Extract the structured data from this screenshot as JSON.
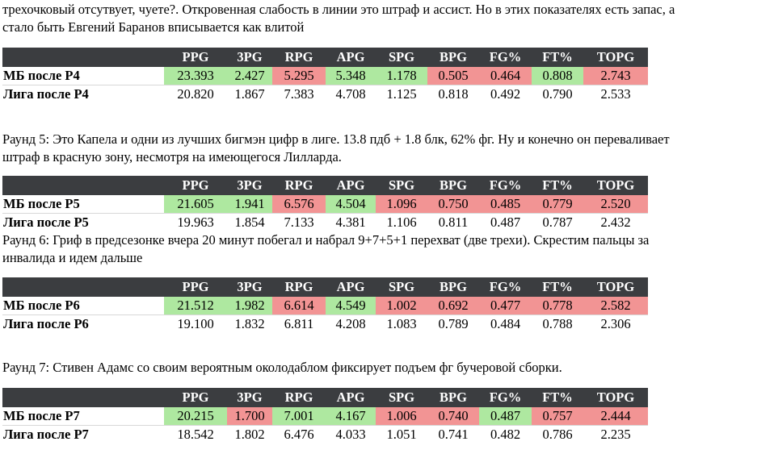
{
  "headers": [
    "PPG",
    "3PG",
    "RPG",
    "APG",
    "SPG",
    "BPG",
    "FG%",
    "FT%",
    "TOPG"
  ],
  "colors": {
    "header_bg": "#3b3d40",
    "good": "#aee8a0",
    "bad": "#f29494"
  },
  "paragraphs": {
    "p0_line1": "трехочковый отсутвует, чуете?. Откровенная слабость в линии это штраф и ассист. Но в этих показателях есть запас, а",
    "p0_line2": "стало быть Евгений Баранов вписывается как влитой",
    "p5_line1": "Раунд 5: Это Капела и одни из лучших бигмэн цифр в лиге. 13.8 пдб + 1.8 блк, 62% фг. Ну и конечно он переваливает",
    "p5_line2": "штраф в красную зону, несмотря на имеющегося Лилларда.",
    "p6_line1": "Раунд 6: Гриф в предсезонке вчера 20 минут побегал и набрал 9+7+5+1 перехват (две трехи). Скрестим пальцы за",
    "p6_line2": "инвалида и идем дальше",
    "p7_line1": "Раунд 7: Стивен Адамс со своим вероятным околодаблом фиксирует подъем фг бучеровой сборки."
  },
  "tables": {
    "t4": {
      "mb_label": "МБ после Р4",
      "mb": [
        "23.393",
        "2.427",
        "5.295",
        "5.348",
        "1.178",
        "0.505",
        "0.464",
        "0.808",
        "2.743"
      ],
      "mb_status": [
        "good",
        "good",
        "bad",
        "good",
        "good",
        "bad",
        "bad",
        "good",
        "bad"
      ],
      "league_label": "Лига после Р4",
      "league": [
        "20.820",
        "1.867",
        "7.383",
        "4.708",
        "1.125",
        "0.818",
        "0.492",
        "0.790",
        "2.533"
      ]
    },
    "t5": {
      "mb_label": "МБ после Р5",
      "mb": [
        "21.605",
        "1.941",
        "6.576",
        "4.504",
        "1.096",
        "0.750",
        "0.485",
        "0.779",
        "2.520"
      ],
      "mb_status": [
        "good",
        "good",
        "bad",
        "good",
        "bad",
        "bad",
        "bad",
        "bad",
        "bad"
      ],
      "league_label": "Лига после Р5",
      "league": [
        "19.963",
        "1.854",
        "7.133",
        "4.381",
        "1.106",
        "0.811",
        "0.487",
        "0.787",
        "2.432"
      ]
    },
    "t6": {
      "mb_label": "МБ после Р6",
      "mb": [
        "21.512",
        "1.982",
        "6.614",
        "4.549",
        "1.002",
        "0.692",
        "0.477",
        "0.778",
        "2.582"
      ],
      "mb_status": [
        "good",
        "good",
        "bad",
        "good",
        "bad",
        "bad",
        "bad",
        "bad",
        "bad"
      ],
      "league_label": "Лига после Р6",
      "league": [
        "19.100",
        "1.832",
        "6.811",
        "4.208",
        "1.083",
        "0.789",
        "0.484",
        "0.788",
        "2.306"
      ]
    },
    "t7": {
      "mb_label": "МБ после Р7",
      "mb": [
        "20.215",
        "1.700",
        "7.001",
        "4.167",
        "1.006",
        "0.740",
        "0.487",
        "0.757",
        "2.444"
      ],
      "mb_status": [
        "good",
        "bad",
        "good",
        "good",
        "bad",
        "bad",
        "good",
        "bad",
        "bad"
      ],
      "league_label": "Лига после Р7",
      "league": [
        "18.542",
        "1.802",
        "6.476",
        "4.033",
        "1.051",
        "0.741",
        "0.482",
        "0.786",
        "2.235"
      ]
    }
  }
}
